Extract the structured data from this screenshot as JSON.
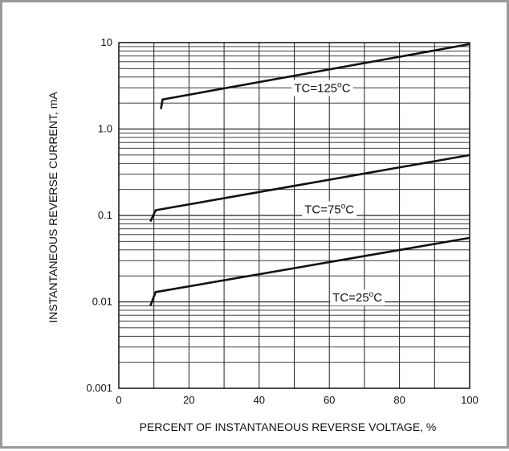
{
  "chart_data": {
    "type": "line",
    "title": "",
    "xlabel": "PERCENT OF INSTANTANEOUS REVERSE VOLTAGE, %",
    "ylabel": "INSTANTANEOUS REVERSE CURRENT, mA",
    "xlim": [
      0,
      100
    ],
    "ylim": [
      0.001,
      10
    ],
    "yscale": "log",
    "grid": true,
    "x_ticks": [
      0,
      20,
      40,
      60,
      80,
      100
    ],
    "x_tick_labels": [
      "0",
      "20",
      "40",
      "60",
      "80",
      "100"
    ],
    "y_ticks": [
      0.001,
      0.01,
      0.1,
      1.0,
      10
    ],
    "y_tick_labels": [
      "0.001",
      "0.01",
      "0.1",
      "1.0",
      "10"
    ],
    "series": [
      {
        "name": "TC=125°C",
        "label_parts": [
          "TC=125",
          "o",
          "C"
        ],
        "label_pos": [
          58,
          2.8
        ],
        "points": [
          [
            12,
            1.7
          ],
          [
            12.5,
            2.2
          ],
          [
            100,
            9.6
          ]
        ]
      },
      {
        "name": "TC=75°C",
        "label_parts": [
          "TC=75",
          "o",
          "C"
        ],
        "label_pos": [
          60,
          0.11
        ],
        "points": [
          [
            9,
            0.085
          ],
          [
            10.5,
            0.115
          ],
          [
            100,
            0.5
          ]
        ]
      },
      {
        "name": "TC=25°C",
        "label_parts": [
          "TC=25",
          "o",
          "C"
        ],
        "label_pos": [
          68,
          0.0105
        ],
        "points": [
          [
            9,
            0.009
          ],
          [
            10.5,
            0.013
          ],
          [
            100,
            0.055
          ]
        ]
      }
    ]
  }
}
